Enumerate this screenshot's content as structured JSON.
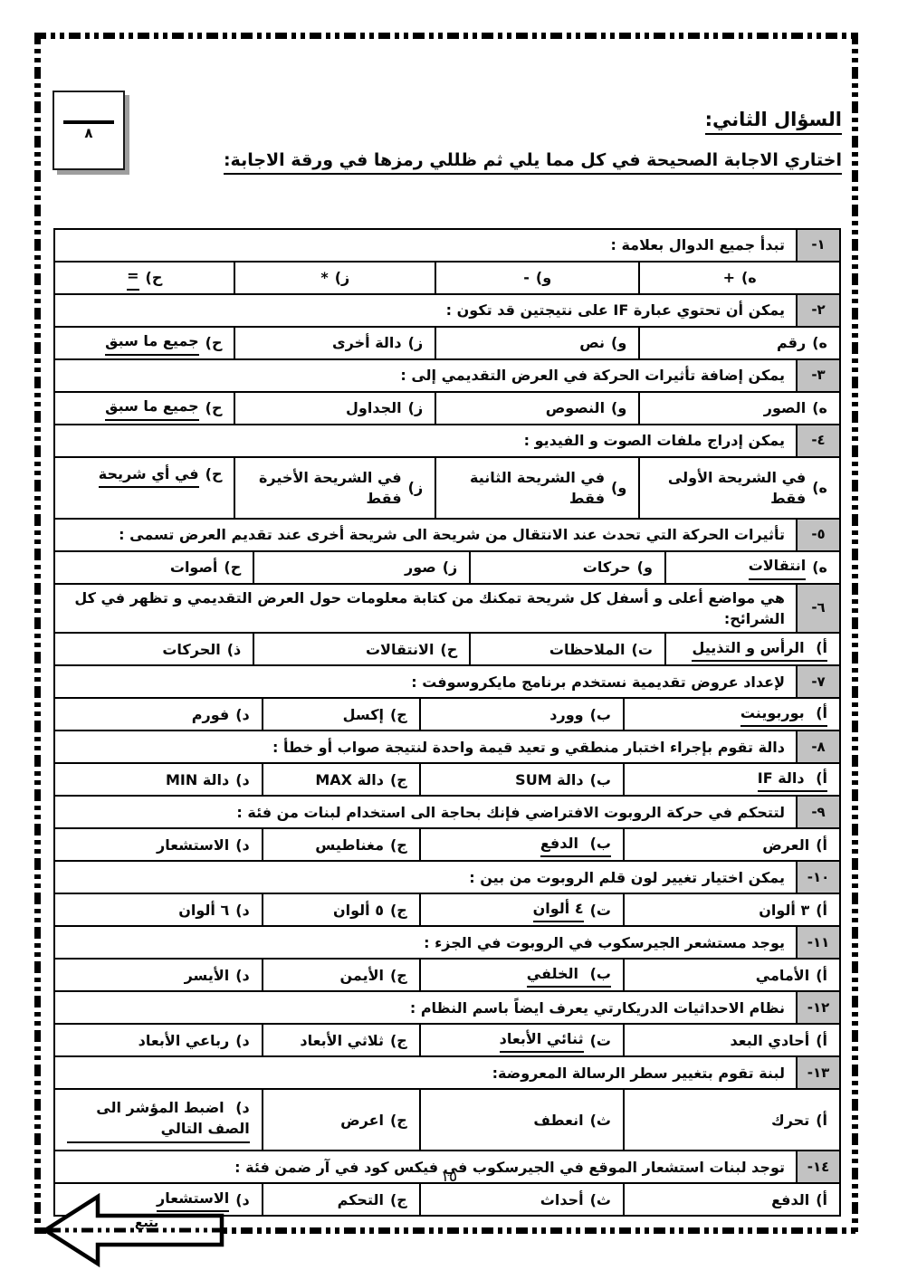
{
  "page": {
    "title": "السؤال الثاني:",
    "instruction": "اختاري الاجابة الصحيحة في كل مما يلي ثم ظللي رمزها في ورقة الاجابة:",
    "score_box_max": "٨",
    "page_number": "١٥",
    "continue_label": "يتبع"
  },
  "colors": {
    "number_cell_bg": "#c2c2c2",
    "border": "#000000",
    "score_box_shadow": "#9e9e9e"
  },
  "questions": [
    {
      "num": "١-",
      "text": "تبدأ جميع الدوال بعلامة :",
      "options": [
        {
          "label": "ه)",
          "text": "+",
          "marked": "none"
        },
        {
          "label": "و)",
          "text": "-",
          "marked": "none"
        },
        {
          "label": "ز)",
          "text": "*",
          "marked": "none"
        },
        {
          "label": "ح)",
          "text": "=",
          "marked": "text"
        }
      ]
    },
    {
      "num": "٢-",
      "text": "يمكن أن تحتوي عبارة IF على نتيجتين قد تكون :",
      "options": [
        {
          "label": "ه)",
          "text": "رقم",
          "marked": "none"
        },
        {
          "label": "و)",
          "text": "نص",
          "marked": "none"
        },
        {
          "label": "ز)",
          "text": "دالة أخرى",
          "marked": "none"
        },
        {
          "label": "ح)",
          "text": "جميع ما سبق",
          "marked": "text"
        }
      ]
    },
    {
      "num": "٣-",
      "text": "يمكن إضافة تأثيرات الحركة في العرض التقديمي إلى :",
      "options": [
        {
          "label": "ه)",
          "text": "الصور",
          "marked": "none"
        },
        {
          "label": "و)",
          "text": "النصوص",
          "marked": "none"
        },
        {
          "label": "ز)",
          "text": "الجداول",
          "marked": "none"
        },
        {
          "label": "ح)",
          "text": "جميع ما سبق",
          "marked": "text"
        }
      ]
    },
    {
      "num": "٤-",
      "text": "يمكن إدراج ملفات الصوت و الفيديو :",
      "options": [
        {
          "label": "ه)",
          "text": "في الشريحة الأولى فقط",
          "marked": "none"
        },
        {
          "label": "و)",
          "text": "في الشريحة الثانية فقط",
          "marked": "none"
        },
        {
          "label": "ز)",
          "text": "في الشريحة الأخيرة فقط",
          "marked": "none"
        },
        {
          "label": "ح)",
          "text": "في أي شريحة",
          "marked": "text"
        }
      ]
    },
    {
      "num": "٥-",
      "text": "تأثيرات الحركة التي تحدث عند الانتقال من شريحة الى شريحة أخرى عند تقديم العرض تسمى :",
      "options": [
        {
          "label": "ه)",
          "text": "انتقالات",
          "marked": "text"
        },
        {
          "label": "و)",
          "text": "حركات",
          "marked": "none"
        },
        {
          "label": "ز)",
          "text": "صور",
          "marked": "none"
        },
        {
          "label": "ح)",
          "text": "أصوات",
          "marked": "none"
        }
      ]
    },
    {
      "num": "٦-",
      "text": "هي مواضع أعلى و أسفل كل شريحة تمكنك من كتابة معلومات حول العرض التقديمي و تظهر في كل الشرائح:",
      "options": [
        {
          "label": "أ)",
          "text": "الرأس و التذييل",
          "marked": "full"
        },
        {
          "label": "ت)",
          "text": "الملاحظات",
          "marked": "none"
        },
        {
          "label": "ح)",
          "text": "الانتقالات",
          "marked": "none"
        },
        {
          "label": "ذ)",
          "text": "الحركات",
          "marked": "none"
        }
      ]
    },
    {
      "num": "٧-",
      "text": "لإعداد عروض تقديمية نستخدم برنامج مايكروسوفت :",
      "options": [
        {
          "label": "أ)",
          "text": "بوربوينت",
          "marked": "full"
        },
        {
          "label": "ب)",
          "text": "وورد",
          "marked": "none"
        },
        {
          "label": "ج)",
          "text": "إكسل",
          "marked": "none"
        },
        {
          "label": "د)",
          "text": "فورم",
          "marked": "none"
        }
      ]
    },
    {
      "num": "٨-",
      "text": "دالة تقوم بإجراء اختبار منطقي و تعيد قيمة واحدة لنتيجة صواب أو خطأ :",
      "options": [
        {
          "label": "أ)",
          "text": "دالة IF",
          "marked": "full"
        },
        {
          "label": "ب)",
          "text": "دالة SUM",
          "marked": "none"
        },
        {
          "label": "ج)",
          "text": "دالة MAX",
          "marked": "none"
        },
        {
          "label": "د)",
          "text": "دالة MIN",
          "marked": "none"
        }
      ]
    },
    {
      "num": "٩-",
      "text": "لتتحكم في حركة الروبوت الافتراضي فإنك بحاجة الى استخدام لبنات من فئة :",
      "options": [
        {
          "label": "أ)",
          "text": "العرض",
          "marked": "none"
        },
        {
          "label": "ب)",
          "text": "الدفع",
          "marked": "full"
        },
        {
          "label": "ج)",
          "text": "مغناطيس",
          "marked": "none"
        },
        {
          "label": "د)",
          "text": "الاستشعار",
          "marked": "none"
        }
      ]
    },
    {
      "num": "١٠-",
      "text": "يمكن اختيار تغيير لون قلم الروبوت من بين :",
      "options": [
        {
          "label": "أ)",
          "text": "٣ ألوان",
          "marked": "none"
        },
        {
          "label": "ت)",
          "text": "٤ ألوان",
          "marked": "text"
        },
        {
          "label": "ج)",
          "text": "٥ ألوان",
          "marked": "none"
        },
        {
          "label": "د)",
          "text": "٦ ألوان",
          "marked": "none"
        }
      ]
    },
    {
      "num": "١١-",
      "text": "يوجد مستشعر الجيرسكوب في الروبوت في الجزء :",
      "options": [
        {
          "label": "أ)",
          "text": "الأمامي",
          "marked": "none"
        },
        {
          "label": "ب)",
          "text": "الخلفي",
          "marked": "full"
        },
        {
          "label": "ج)",
          "text": "الأيمن",
          "marked": "none"
        },
        {
          "label": "د)",
          "text": "الأيسر",
          "marked": "none"
        }
      ]
    },
    {
      "num": "١٢-",
      "text": "نظام الاحداثيات الدريكارتي يعرف ايضاً باسم النظام :",
      "options": [
        {
          "label": "أ)",
          "text": "أحادي البعد",
          "marked": "none"
        },
        {
          "label": "ت)",
          "text": "ثنائي الأبعاد",
          "marked": "text"
        },
        {
          "label": "ج)",
          "text": "ثلاثي الأبعاد",
          "marked": "none"
        },
        {
          "label": "د)",
          "text": "رباعي الأبعاد",
          "marked": "none"
        }
      ]
    },
    {
      "num": "١٣-",
      "text": "لبنة تقوم بتغيير سطر الرسالة المعروضة:",
      "options": [
        {
          "label": "أ)",
          "text": "تحرك",
          "marked": "none"
        },
        {
          "label": "ث)",
          "text": "انعطف",
          "marked": "none"
        },
        {
          "label": "ج)",
          "text": "اعرض",
          "marked": "none"
        },
        {
          "label": "د)",
          "text": "اضبط المؤشر الى الصف التالي",
          "marked": "full"
        }
      ]
    },
    {
      "num": "١٤-",
      "text": "توجد لبنات استشعار الموقع في الجيرسكوب في فيكس كود في آر ضمن فئة :",
      "options": [
        {
          "label": "أ)",
          "text": "الدفع",
          "marked": "none"
        },
        {
          "label": "ث)",
          "text": "أحداث",
          "marked": "none"
        },
        {
          "label": "ج)",
          "text": "التحكم",
          "marked": "none"
        },
        {
          "label": "د)",
          "text": "الاستشعار",
          "marked": "text"
        }
      ]
    }
  ]
}
